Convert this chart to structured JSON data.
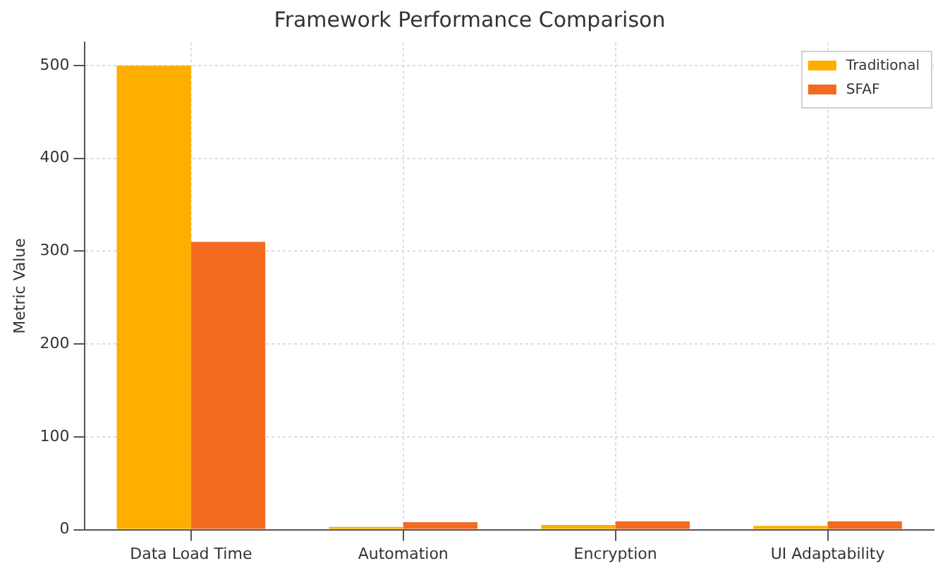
{
  "chart_data": {
    "type": "bar",
    "title": "Framework Performance Comparison",
    "ylabel": "Metric Value",
    "categories": [
      "Data Load Time",
      "Automation",
      "Encryption",
      "UI Adaptability"
    ],
    "series": [
      {
        "name": "Traditional",
        "color": "#ffae00",
        "values": [
          500,
          3,
          5,
          4
        ]
      },
      {
        "name": "SFAF",
        "color": "#f26b21",
        "values": [
          310,
          8,
          9,
          9
        ]
      }
    ],
    "ylim": [
      0,
      525
    ],
    "yticks": [
      0,
      100,
      200,
      300,
      400,
      500
    ],
    "grid": true,
    "legend": "top right"
  }
}
